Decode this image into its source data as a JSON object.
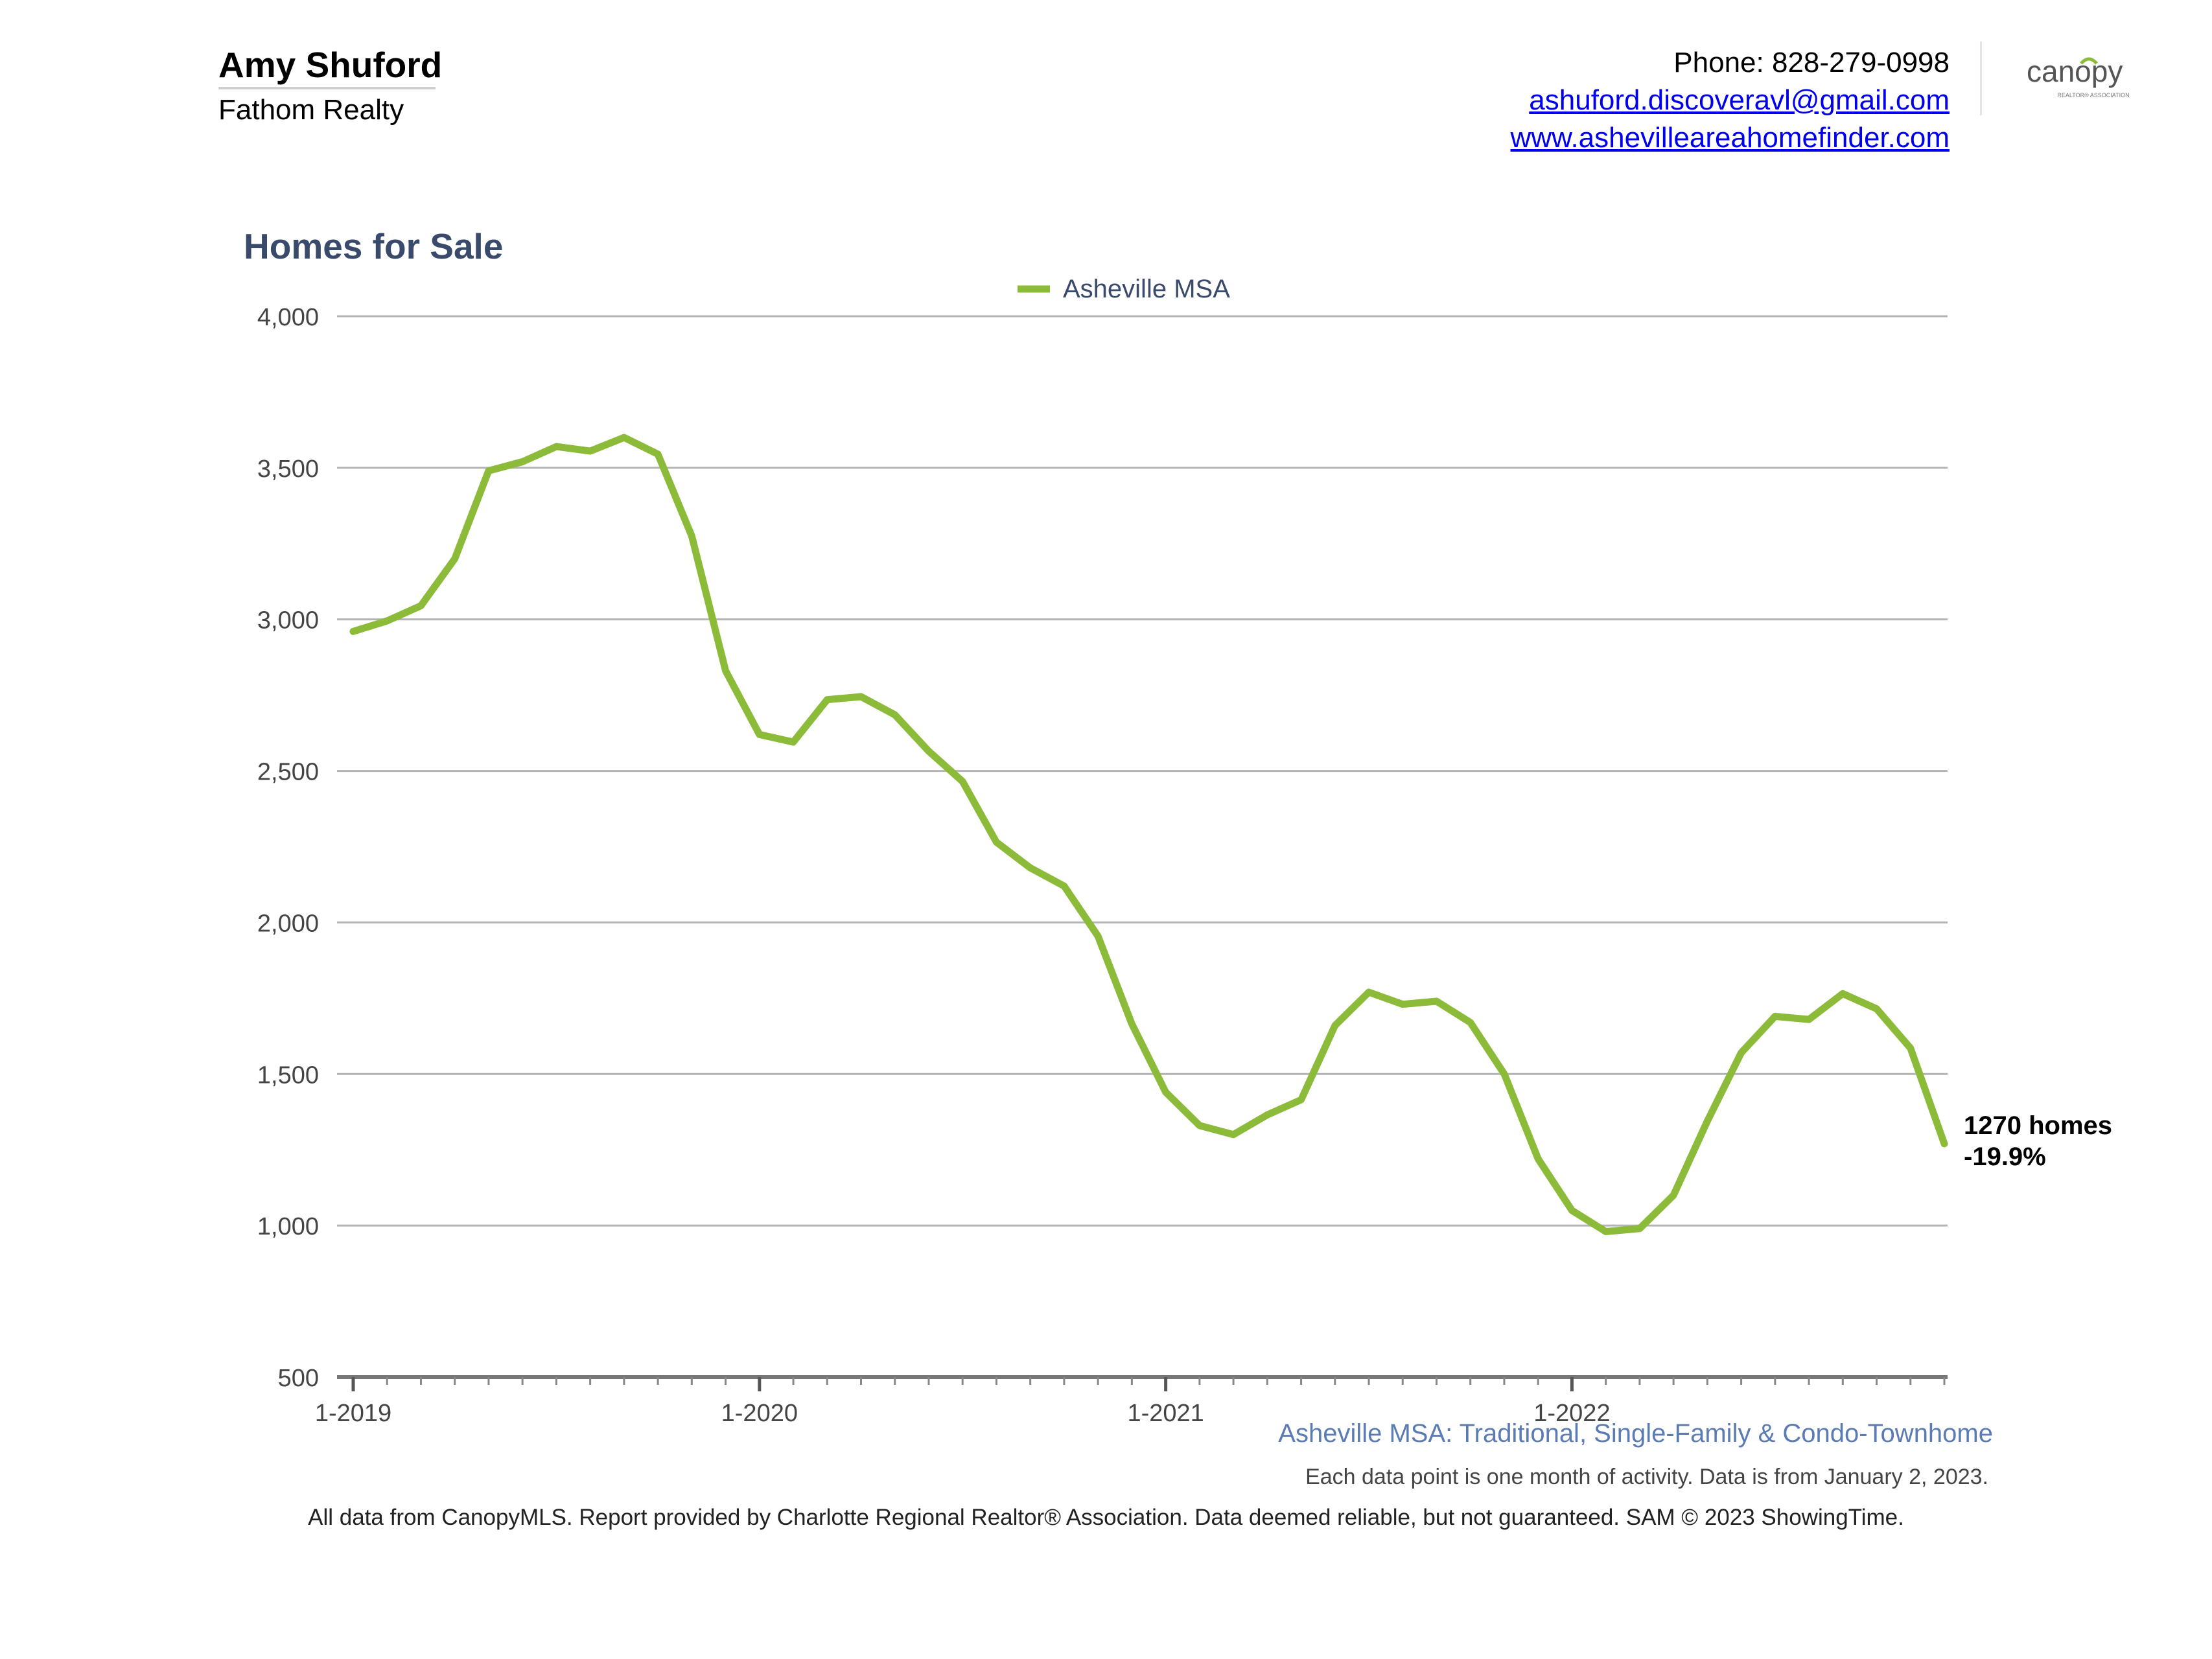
{
  "header": {
    "agent_name": "Amy Shuford",
    "company": "Fathom Realty",
    "phone": "Phone: 828-279-0998",
    "email": "ashuford.discoveravl@gmail.com",
    "website": "www.ashevilleareahomefinder.com",
    "logo_text": "canopy",
    "logo_subtext": "REALTOR® ASSOCIATION"
  },
  "chart_data": {
    "type": "line",
    "title": "Homes for Sale",
    "legend": "top-center",
    "ylim": [
      500,
      4000
    ],
    "yticks": [
      500,
      1000,
      1500,
      2000,
      2500,
      3000,
      3500,
      4000
    ],
    "ytick_labels": [
      "500",
      "1,000",
      "1,500",
      "2,000",
      "2,500",
      "3,000",
      "3,500",
      "4,000"
    ],
    "x_tick_labels": [
      "1-2019",
      "1-2020",
      "1-2021",
      "1-2022"
    ],
    "x": [
      "2019-01",
      "2019-02",
      "2019-03",
      "2019-04",
      "2019-05",
      "2019-06",
      "2019-07",
      "2019-08",
      "2019-09",
      "2019-10",
      "2019-11",
      "2019-12",
      "2020-01",
      "2020-02",
      "2020-03",
      "2020-04",
      "2020-05",
      "2020-06",
      "2020-07",
      "2020-08",
      "2020-09",
      "2020-10",
      "2020-11",
      "2020-12",
      "2021-01",
      "2021-02",
      "2021-03",
      "2021-04",
      "2021-05",
      "2021-06",
      "2021-07",
      "2021-08",
      "2021-09",
      "2021-10",
      "2021-11",
      "2021-12",
      "2022-01",
      "2022-02",
      "2022-03",
      "2022-04",
      "2022-05",
      "2022-06",
      "2022-07",
      "2022-08",
      "2022-09",
      "2022-10",
      "2022-11",
      "2022-12"
    ],
    "series": [
      {
        "name": "Asheville MSA",
        "color": "#8cbb3a",
        "values": [
          2960,
          2995,
          3045,
          3200,
          3490,
          3520,
          3570,
          3555,
          3600,
          3545,
          3275,
          2830,
          2620,
          2595,
          2735,
          2745,
          2685,
          2565,
          2465,
          2265,
          2180,
          2120,
          1955,
          1665,
          1440,
          1330,
          1300,
          1365,
          1415,
          1660,
          1770,
          1730,
          1740,
          1670,
          1500,
          1220,
          1050,
          980,
          990,
          1100,
          1345,
          1570,
          1690,
          1680,
          1765,
          1715,
          1585,
          1270
        ]
      }
    ],
    "annotation": {
      "line1": "1270 homes",
      "line2": "-19.9%"
    },
    "subtitle": "Asheville MSA: Traditional, Single-Family & Condo-Townhome",
    "note": "Each data point is one month of activity. Data is from January 2, 2023."
  },
  "footer": "All data from CanopyMLS. Report provided by Charlotte Regional Realtor® Association. Data deemed reliable, but not guaranteed. SAM © 2023 ShowingTime."
}
